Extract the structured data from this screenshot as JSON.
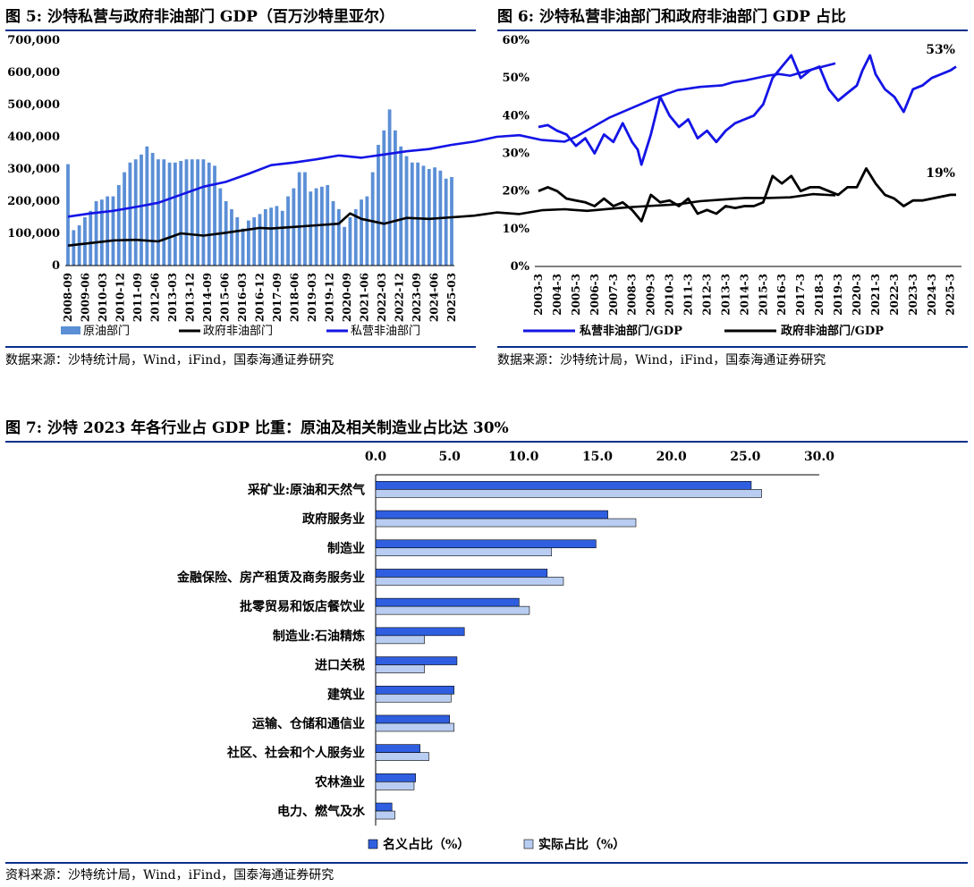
{
  "fig5": {
    "title": "图 5:  沙特私营与政府非油部门 GDP（百万沙特里亚尔）",
    "source": "数据来源：沙特统计局，Wind，iFind，国泰海通证券研究"
  },
  "fig6": {
    "title": "图 6:  沙特私营非油部门和政府非油部门 GDP 占比",
    "source": "数据来源：沙特统计局，Wind，iFind，国泰海通证券研究"
  },
  "fig7": {
    "title": "图 7:  沙特 2023 年各行业占 GDP 比重：原油及相关制造业占比达 30%",
    "source": "资料来源：沙特统计局，Wind，iFind，国泰海通证券研究"
  },
  "colors": {
    "blue": "#1414e6",
    "black": "#000000",
    "bar": "#5b8fd6",
    "nominal": "#2f5fe0",
    "real": "#b9cdf2",
    "rule": "#0a2f8a"
  },
  "chart_data": [
    {
      "id": "fig5",
      "type": "bar+line",
      "yticks": [
        "0",
        "100,000",
        "200,000",
        "300,000",
        "400,000",
        "500,000",
        "600,000",
        "700,000"
      ],
      "ylim": [
        0,
        700000
      ],
      "xticks": [
        "2008-09",
        "2009-06",
        "2010-03",
        "2010-12",
        "2011-09",
        "2012-06",
        "2013-03",
        "2013-12",
        "2014-09",
        "2015-06",
        "2016-03",
        "2016-12",
        "2017-09",
        "2018-06",
        "2019-03",
        "2019-12",
        "2020-09",
        "2021-06",
        "2022-03",
        "2022-12",
        "2023-09",
        "2024-06",
        "2025-03"
      ],
      "legend": [
        "原油部门",
        "政府非油部门",
        "私营非油部门"
      ],
      "bars": {
        "name": "原油部门",
        "values": [
          315000,
          110000,
          125000,
          150000,
          170000,
          200000,
          205000,
          215000,
          215000,
          250000,
          290000,
          320000,
          330000,
          345000,
          370000,
          350000,
          330000,
          330000,
          320000,
          320000,
          325000,
          330000,
          330000,
          330000,
          330000,
          320000,
          310000,
          240000,
          200000,
          175000,
          150000,
          115000,
          140000,
          150000,
          160000,
          175000,
          180000,
          185000,
          170000,
          215000,
          240000,
          290000,
          290000,
          230000,
          240000,
          245000,
          250000,
          200000,
          175000,
          120000,
          150000,
          175000,
          205000,
          215000,
          290000,
          375000,
          420000,
          485000,
          420000,
          370000,
          340000,
          320000,
          320000,
          310000,
          300000,
          305000,
          295000,
          270000,
          275000
        ]
      },
      "series": [
        {
          "name": "政府非油部门",
          "x": [
            0,
            4,
            8,
            12,
            16,
            20,
            24,
            28,
            32,
            34,
            36,
            40,
            44,
            48,
            50,
            52,
            56,
            60,
            64,
            68,
            72,
            76,
            80,
            84,
            88,
            92,
            96,
            100,
            104,
            108,
            112,
            116,
            120,
            124,
            128,
            132,
            136
          ],
          "values": [
            62000,
            70000,
            78000,
            80000,
            75000,
            100000,
            93000,
            102000,
            112000,
            117000,
            115000,
            120000,
            125000,
            130000,
            162000,
            145000,
            130000,
            148000,
            145000,
            150000,
            155000,
            165000,
            160000,
            172000,
            175000,
            170000,
            176000,
            182000,
            186000,
            190000,
            200000,
            205000,
            210000,
            210000,
            212000,
            222000,
            218000
          ]
        },
        {
          "name": "私营非油部门",
          "x": [
            0,
            4,
            8,
            12,
            16,
            20,
            24,
            28,
            32,
            36,
            40,
            44,
            48,
            52,
            56,
            60,
            64,
            68,
            72,
            76,
            80,
            84,
            88,
            90,
            92,
            96,
            100,
            104,
            108,
            112,
            116,
            118,
            120,
            124,
            126,
            128,
            132,
            136
          ],
          "values": [
            152000,
            162000,
            170000,
            182000,
            195000,
            220000,
            245000,
            260000,
            285000,
            312000,
            320000,
            330000,
            342000,
            335000,
            345000,
            355000,
            362000,
            375000,
            385000,
            400000,
            405000,
            390000,
            385000,
            400000,
            420000,
            460000,
            490000,
            520000,
            545000,
            555000,
            560000,
            570000,
            575000,
            590000,
            595000,
            590000,
            610000,
            628000
          ]
        }
      ]
    },
    {
      "id": "fig6",
      "type": "line",
      "yticks": [
        "0%",
        "10%",
        "20%",
        "30%",
        "40%",
        "50%",
        "60%"
      ],
      "ylim": [
        0,
        60
      ],
      "xticks": [
        "2003-3",
        "2004-3",
        "2005-3",
        "2006-3",
        "2007-3",
        "2008-3",
        "2009-3",
        "2010-3",
        "2011-3",
        "2012-3",
        "2013-3",
        "2014-3",
        "2015-3",
        "2016-3",
        "2017-3",
        "2018-3",
        "2019-3",
        "2020-3",
        "2021-3",
        "2022-3",
        "2023-3",
        "2024-3",
        "2025-3"
      ],
      "legend": [
        "私营非油部门/GDP",
        "政府非油部门/GDP"
      ],
      "annotations": [
        "53%",
        "19%"
      ],
      "series": [
        {
          "name": "私营非油部门/GDP",
          "x": [
            2003,
            2003.5,
            2004,
            2004.5,
            2005,
            2005.5,
            2006,
            2006.5,
            2007,
            2007.5,
            2008,
            2008.3,
            2008.5,
            2009,
            2009.5,
            2010,
            2010.5,
            2011,
            2011.5,
            2012,
            2012.5,
            2013,
            2013.5,
            2014,
            2014.5,
            2015,
            2015.5,
            2016,
            2016.5,
            2017,
            2017.5,
            2018,
            2018.5,
            2019,
            2019.5,
            2020,
            2020.3,
            2020.7,
            2021,
            2021.5,
            2022,
            2022.5,
            2023,
            2023.5,
            2024,
            2024.5,
            2025,
            2025.3
          ],
          "values": [
            37,
            37.5,
            36,
            35,
            32,
            34,
            30,
            35,
            33,
            38,
            33,
            31,
            27,
            35,
            45,
            40,
            37,
            39,
            34,
            36,
            33,
            36,
            38,
            39,
            40,
            43,
            50,
            53,
            56,
            50,
            52,
            53,
            47,
            44,
            46,
            48,
            52,
            56,
            51,
            47,
            45,
            41,
            47,
            48,
            50,
            51,
            52,
            53
          ]
        },
        {
          "name": "政府非油部门/GDP",
          "x": [
            2003,
            2003.5,
            2004,
            2004.5,
            2005,
            2005.5,
            2006,
            2006.5,
            2007,
            2007.5,
            2008,
            2008.5,
            2009,
            2009.5,
            2010,
            2010.5,
            2011,
            2011.5,
            2012,
            2012.5,
            2013,
            2013.5,
            2014,
            2014.5,
            2015,
            2015.5,
            2016,
            2016.5,
            2017,
            2017.5,
            2018,
            2018.5,
            2019,
            2019.5,
            2020,
            2020.5,
            2021,
            2021.5,
            2022,
            2022.5,
            2023,
            2023.5,
            2024,
            2024.5,
            2025,
            2025.3
          ],
          "values": [
            20,
            21,
            20,
            18,
            17.5,
            17,
            16,
            18,
            16,
            17,
            15,
            12,
            19,
            17,
            17.5,
            16,
            18,
            14,
            15,
            14,
            16,
            15.5,
            16,
            16,
            17,
            24,
            22,
            24,
            20,
            21,
            21,
            20,
            19,
            21,
            21,
            26,
            22,
            19,
            18,
            16,
            17.5,
            17.5,
            18,
            18.5,
            19,
            19
          ]
        }
      ]
    },
    {
      "id": "fig7",
      "type": "bar",
      "orientation": "horizontal",
      "xticks": [
        "0.0",
        "5.0",
        "10.0",
        "15.0",
        "20.0",
        "25.0",
        "30.0"
      ],
      "xlim": [
        0,
        30
      ],
      "categories": [
        "采矿业:原油和天然气",
        "政府服务业",
        "制造业",
        "金融保险、房产租赁及商务服务业",
        "批零贸易和饭店餐饮业",
        "制造业:石油精炼",
        "进口关税",
        "建筑业",
        "运输、仓储和通信业",
        "社区、社会和个人服务业",
        "农林渔业",
        "电力、燃气及水"
      ],
      "series": [
        {
          "name": "名义占比（%）",
          "values": [
            25.4,
            15.7,
            14.9,
            11.6,
            9.7,
            6.0,
            5.5,
            5.3,
            5.0,
            3.0,
            2.7,
            1.1
          ]
        },
        {
          "name": "实际占比（%）",
          "values": [
            26.1,
            17.6,
            11.9,
            12.7,
            10.4,
            3.3,
            3.3,
            5.1,
            5.3,
            3.6,
            2.6,
            1.3
          ]
        }
      ],
      "legend_position": "bottom-left"
    }
  ]
}
